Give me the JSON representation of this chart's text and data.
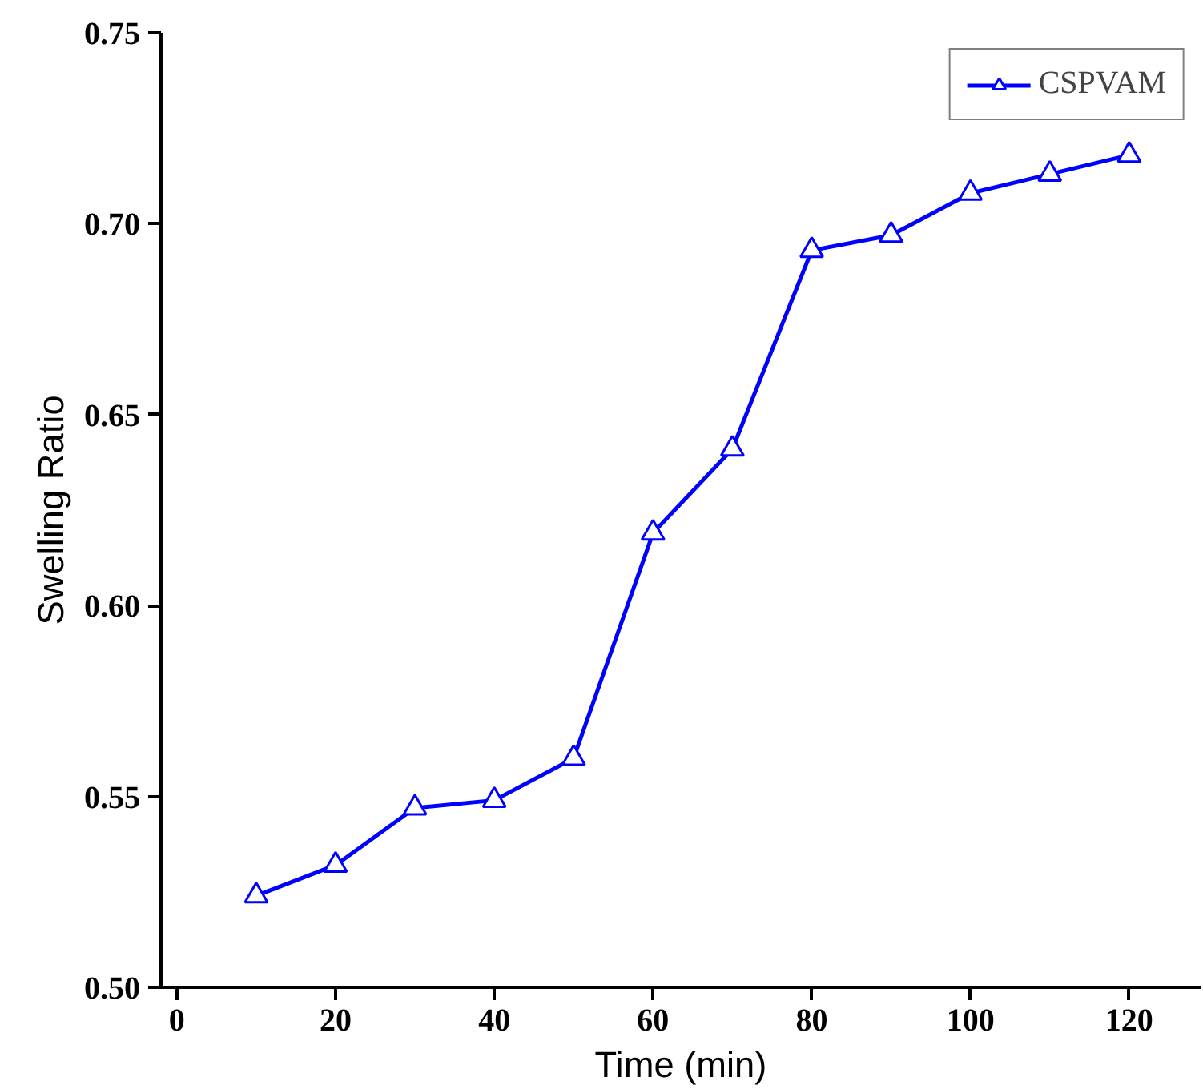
{
  "chart_data": {
    "type": "line",
    "xlabel": "Time (min)",
    "ylabel": "Swelling Ratio",
    "x": [
      10,
      20,
      30,
      40,
      50,
      60,
      70,
      80,
      90,
      100,
      110,
      120
    ],
    "series": [
      {
        "name": "CSPVAM",
        "color": "#0000ff",
        "values": [
          0.524,
          0.532,
          0.547,
          0.549,
          0.56,
          0.619,
          0.641,
          0.693,
          0.697,
          0.708,
          0.713,
          0.718
        ]
      }
    ],
    "xlim": [
      -2,
      129
    ],
    "ylim": [
      0.5,
      0.75
    ],
    "xticks": [
      0,
      20,
      40,
      60,
      80,
      100,
      120
    ],
    "yticks": [
      {
        "value": 0.5,
        "label": "0.50"
      },
      {
        "value": 0.55,
        "label": "0.55"
      },
      {
        "value": 0.6,
        "label": "0.60"
      },
      {
        "value": 0.65,
        "label": "0.65"
      },
      {
        "value": 0.7,
        "label": "0.70"
      },
      {
        "value": 0.75,
        "label": "0.75"
      }
    ],
    "marker": "triangle",
    "line_style": "solid",
    "legend": "top right",
    "grid": false
  }
}
